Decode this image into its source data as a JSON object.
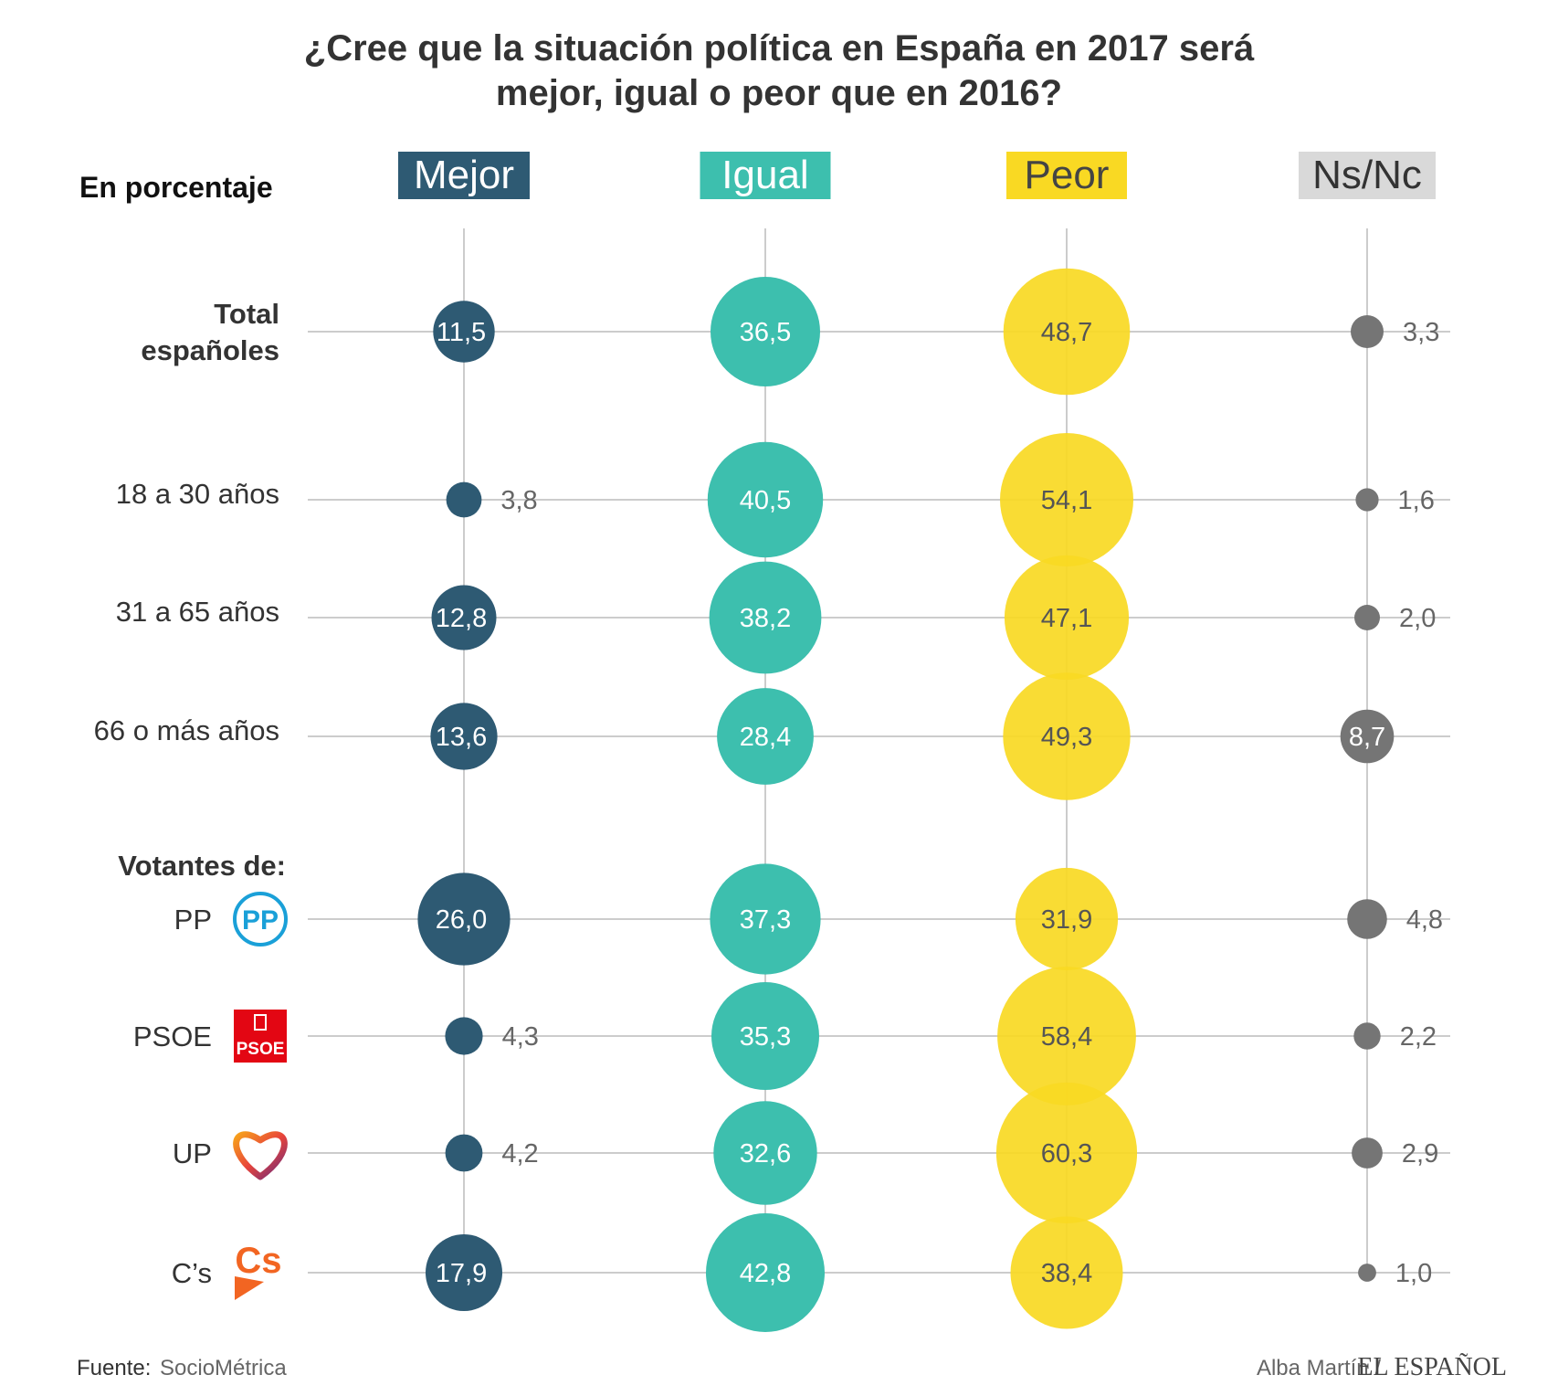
{
  "chart_data": {
    "type": "bubble-grid",
    "title_lines": [
      "¿Cree que la situación política en España en 2017 será",
      "mejor, igual o peor que en 2016?"
    ],
    "unit_label": "En porcentaje",
    "columns": [
      {
        "name": "Mejor",
        "color": "#2e5a73",
        "text_color": "#ffffff"
      },
      {
        "name": "Igual",
        "color": "#3dbfae",
        "text_color": "#ffffff"
      },
      {
        "name": "Peor",
        "color": "#f9d923",
        "text_color": "#444444"
      },
      {
        "name": "Ns/Nc",
        "color": "#d9d9d9",
        "text_color": "#333333"
      }
    ],
    "group_heading": "Votantes de:",
    "rows": [
      {
        "label": "Total españoles",
        "label_lines": [
          "Total",
          "españoles"
        ],
        "bold": true,
        "logo": "",
        "values": [
          11.5,
          36.5,
          48.7,
          3.3
        ],
        "labels": [
          "11,5",
          "36,5",
          "48,7",
          "3,3"
        ]
      },
      {
        "label": "18 a 30 años",
        "label_lines": [
          "18 a 30 años"
        ],
        "bold": false,
        "logo": "",
        "values": [
          3.8,
          40.5,
          54.1,
          1.6
        ],
        "labels": [
          "3,8",
          "40,5",
          "54,1",
          "1,6"
        ]
      },
      {
        "label": "31 a 65 años",
        "label_lines": [
          "31 a 65 años"
        ],
        "bold": false,
        "logo": "",
        "values": [
          12.8,
          38.2,
          47.1,
          2.0
        ],
        "labels": [
          "12,8",
          "38,2",
          "47,1",
          "2,0"
        ]
      },
      {
        "label": "66 o más años",
        "label_lines": [
          "66 o más años"
        ],
        "bold": false,
        "logo": "",
        "values": [
          13.6,
          28.4,
          49.3,
          8.7
        ],
        "labels": [
          "13,6",
          "28,4",
          "49,3",
          "8,7"
        ]
      },
      {
        "label": "PP",
        "label_lines": [
          "PP"
        ],
        "bold": false,
        "logo": "pp-logo-icon",
        "logo_text": "PP",
        "values": [
          26.0,
          37.3,
          31.9,
          4.8
        ],
        "labels": [
          "26,0",
          "37,3",
          "31,9",
          "4,8"
        ]
      },
      {
        "label": "PSOE",
        "label_lines": [
          "PSOE"
        ],
        "bold": false,
        "logo": "psoe-logo-icon",
        "logo_text": "PSOE",
        "values": [
          4.3,
          35.3,
          58.4,
          2.2
        ],
        "labels": [
          "4,3",
          "35,3",
          "58,4",
          "2,2"
        ]
      },
      {
        "label": "UP",
        "label_lines": [
          "UP"
        ],
        "bold": false,
        "logo": "up-heart-logo-icon",
        "logo_text": "",
        "values": [
          4.2,
          32.6,
          60.3,
          2.9
        ],
        "labels": [
          "4,2",
          "32,6",
          "60,3",
          "2,9"
        ]
      },
      {
        "label": "C’s",
        "label_lines": [
          "C’s"
        ],
        "bold": false,
        "logo": "cs-logo-icon",
        "logo_text": "Cs",
        "values": [
          17.9,
          42.8,
          38.4,
          1.0
        ],
        "labels": [
          "17,9",
          "42,8",
          "38,4",
          "1,0"
        ]
      }
    ],
    "marker_colors": [
      "#2e5a73",
      "#3dbfae",
      "#f9d923",
      "#757575"
    ],
    "line_color": "#cccccc"
  },
  "footer": {
    "source_label": "Fuente:",
    "source_value": "SocioMétrica",
    "author": "Alba Martín /",
    "brand": "EL ESPAÑOL"
  }
}
